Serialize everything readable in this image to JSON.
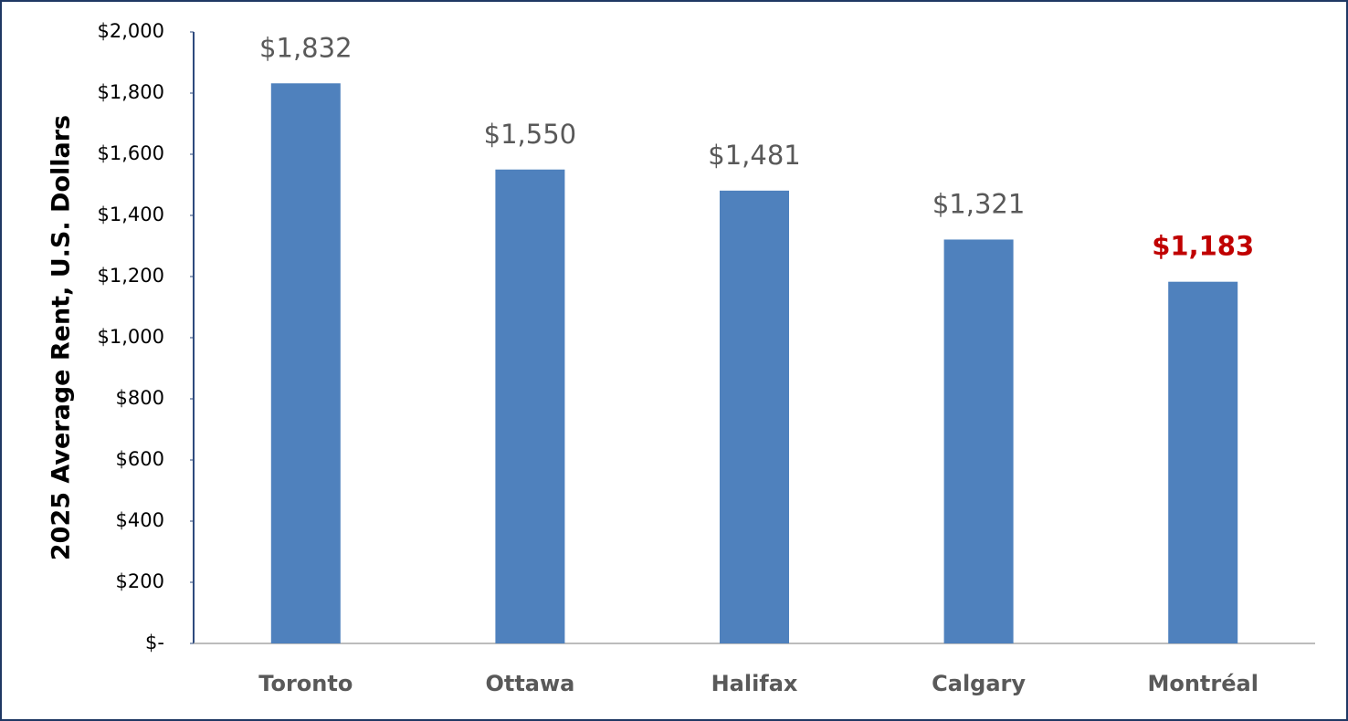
{
  "chart_data": {
    "type": "bar",
    "y_axis_label": "2025 Average Rent, U.S. Dollars",
    "categories": [
      "Toronto",
      "Ottawa",
      "Halifax",
      "Calgary",
      "Montréal"
    ],
    "values": [
      1832,
      1550,
      1481,
      1321,
      1183
    ],
    "value_labels": [
      "$1,832",
      "$1,550",
      "$1,481",
      "$1,321",
      "$1,183"
    ],
    "value_label_colors": [
      "#595959",
      "#595959",
      "#595959",
      "#595959",
      "#c00000"
    ],
    "value_label_bold": [
      false,
      false,
      false,
      false,
      true
    ],
    "color": "#4f81bd",
    "ylim": [
      0,
      2000
    ],
    "yticks": [
      {
        "value": 0,
        "label": "$-"
      },
      {
        "value": 200,
        "label": "$200"
      },
      {
        "value": 400,
        "label": "$400"
      },
      {
        "value": 600,
        "label": "$600"
      },
      {
        "value": 800,
        "label": "$800"
      },
      {
        "value": 1000,
        "label": "$1,000"
      },
      {
        "value": 1200,
        "label": "$1,200"
      },
      {
        "value": 1400,
        "label": "$1,400"
      },
      {
        "value": 1600,
        "label": "$1,600"
      },
      {
        "value": 1800,
        "label": "$1,800"
      },
      {
        "value": 2000,
        "label": "$2,000"
      }
    ],
    "grid": false
  }
}
